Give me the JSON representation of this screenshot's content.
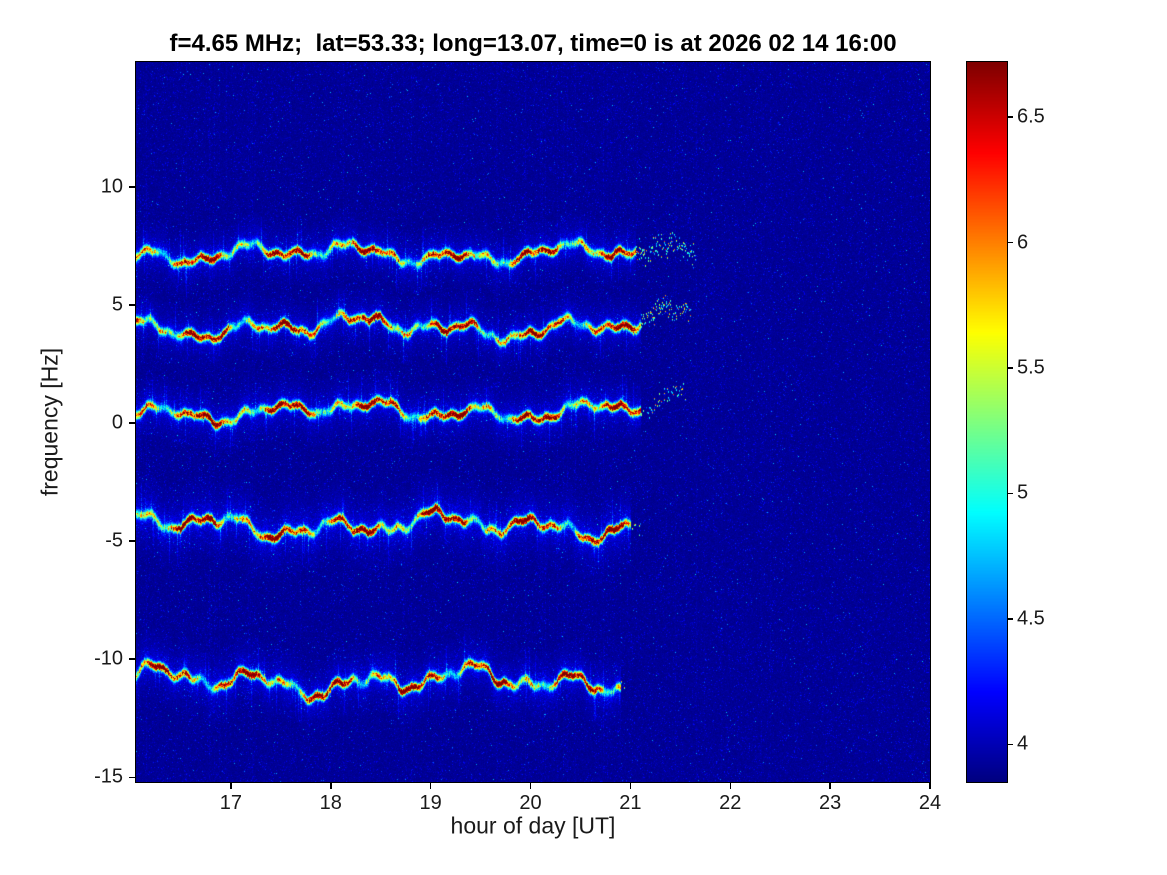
{
  "chart_data": {
    "type": "heatmap",
    "title": "f=4.65 MHz;  lat=53.33; long=13.07, time=0 is at 2026 02 14 16:00",
    "xlabel": "hour of day [UT]",
    "ylabel": "frequency [Hz]",
    "xlim": [
      16.05,
      24
    ],
    "ylim": [
      -15.2,
      15.3
    ],
    "x_ticks": [
      17,
      18,
      19,
      20,
      21,
      22,
      23,
      24
    ],
    "y_ticks": [
      10,
      5,
      0,
      -5,
      -10,
      -15
    ],
    "colormap": "jet",
    "grid": false,
    "legend": "none",
    "color_axis": {
      "min": 3.85,
      "max": 6.72,
      "ticks": [
        4,
        4.5,
        5,
        5.5,
        6,
        6.5
      ]
    },
    "background_level": 3.9,
    "description": "Doppler spectrogram: five wavy spectral traces over dark-blue noise background, fading out shortly after hour 21",
    "traces": [
      {
        "name": "doppler-trace-1",
        "center_hz": 7.2,
        "start_hour": 16.05,
        "end_hour": 21.05,
        "tail_end_hour": 21.65,
        "tail_density": 0.85,
        "tail_rise_hz": 0.2,
        "peak_level": 6.45,
        "wiggle_amp": 0.42,
        "spread_hz": 0.55,
        "seed": 101
      },
      {
        "name": "doppler-trace-2",
        "center_hz": 4.1,
        "start_hour": 16.05,
        "end_hour": 21.1,
        "tail_end_hour": 21.6,
        "tail_density": 0.9,
        "tail_rise_hz": 0.7,
        "peak_level": 6.55,
        "wiggle_amp": 0.45,
        "spread_hz": 0.55,
        "seed": 202
      },
      {
        "name": "doppler-trace-3",
        "center_hz": 0.55,
        "start_hour": 16.05,
        "end_hour": 21.1,
        "tail_end_hour": 21.55,
        "tail_density": 0.45,
        "tail_rise_hz": 0.5,
        "peak_level": 6.6,
        "wiggle_amp": 0.4,
        "spread_hz": 0.6,
        "seed": 303
      },
      {
        "name": "doppler-trace-4",
        "center_hz": -4.3,
        "start_hour": 16.05,
        "end_hour": 21.0,
        "tail_end_hour": 21.1,
        "tail_density": 0.3,
        "tail_rise_hz": 0.0,
        "peak_level": 6.72,
        "wiggle_amp": 0.5,
        "spread_hz": 0.75,
        "seed": 404
      },
      {
        "name": "doppler-trace-5",
        "center_hz": -10.9,
        "start_hour": 16.05,
        "end_hour": 20.9,
        "tail_end_hour": 20.95,
        "tail_density": 0.2,
        "tail_rise_hz": 0.0,
        "peak_level": 6.6,
        "wiggle_amp": 0.55,
        "spread_hz": 0.65,
        "seed": 505
      }
    ]
  }
}
